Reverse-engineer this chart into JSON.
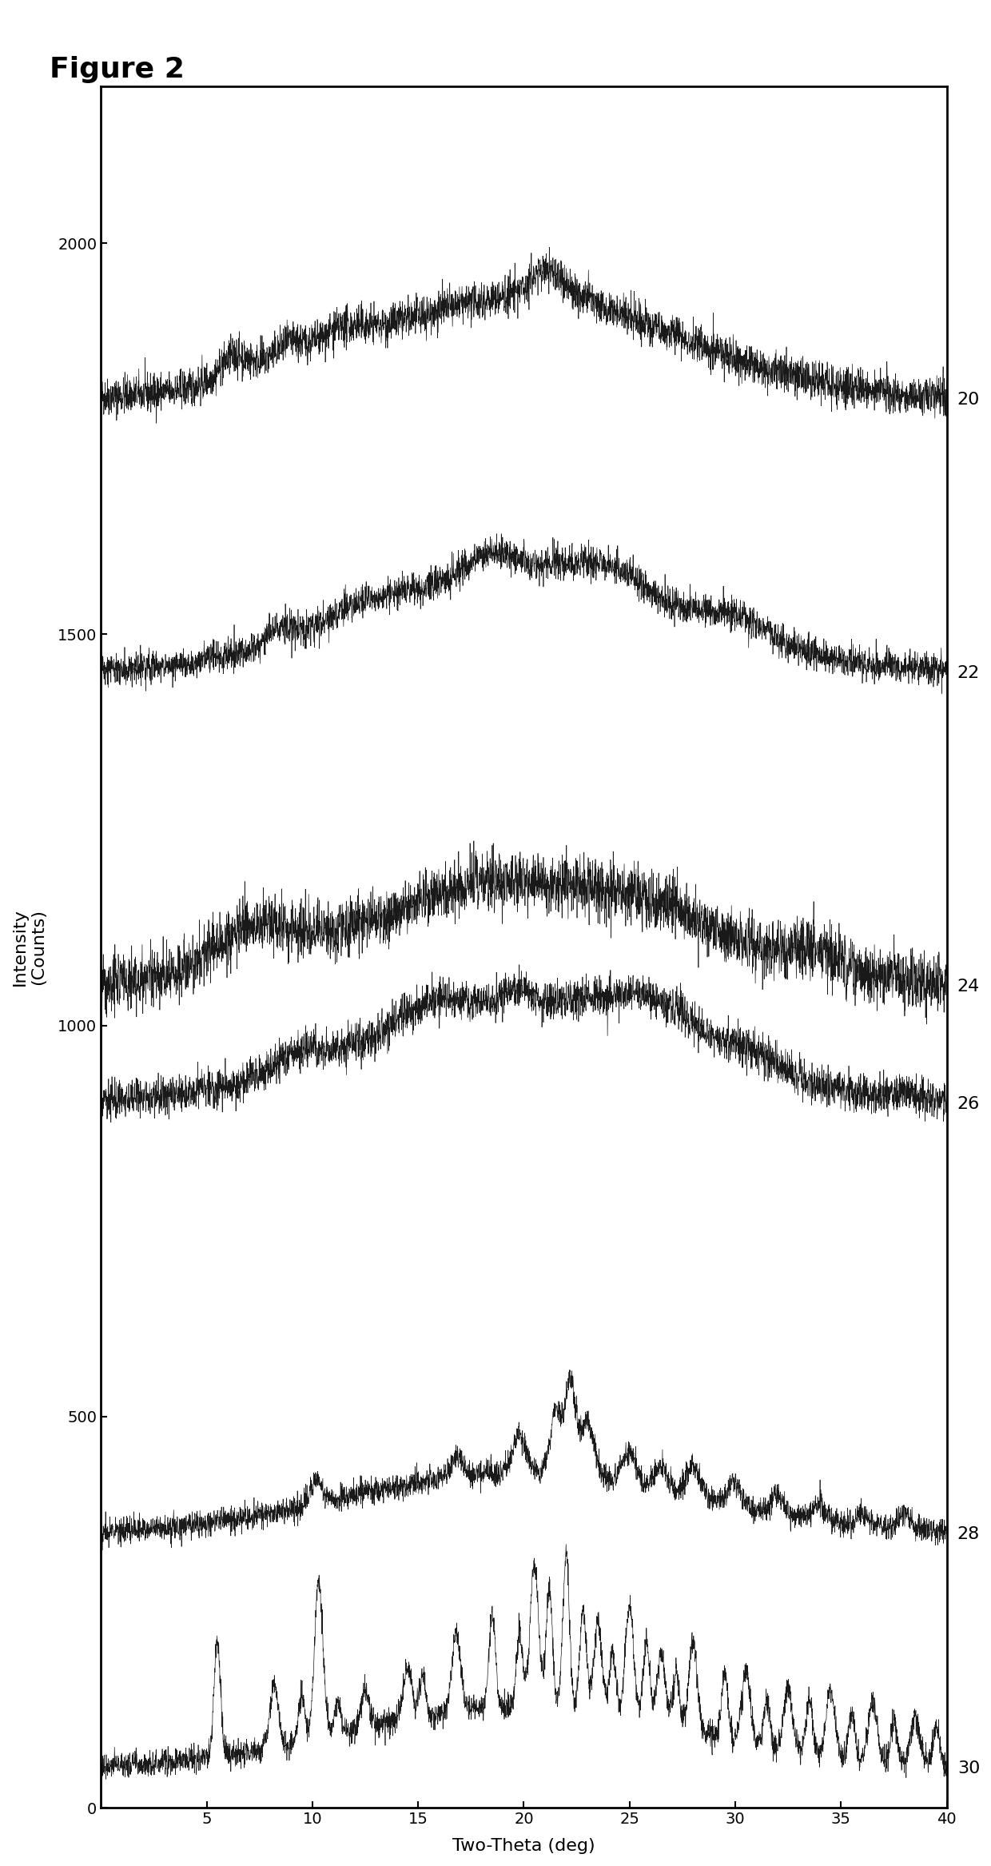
{
  "title": "Figure 2",
  "xlabel": "Two-Theta (deg)",
  "ylabel": "Intensity\n(Counts)",
  "x_min": 0,
  "x_max": 40,
  "y_min": 0,
  "y_max": 2200,
  "yticks": [
    0,
    500,
    1000,
    1500,
    2000
  ],
  "xticks": [
    5,
    10,
    15,
    20,
    25,
    30,
    35,
    40
  ],
  "pattern_labels": [
    "20",
    "22",
    "24",
    "26",
    "28",
    "30"
  ],
  "pattern_offsets": [
    1800,
    1450,
    1050,
    900,
    350,
    50
  ],
  "background_color": "#ffffff",
  "line_color": "#000000",
  "noise_scale": [
    12,
    10,
    18,
    12,
    8,
    8
  ],
  "seed": 42
}
